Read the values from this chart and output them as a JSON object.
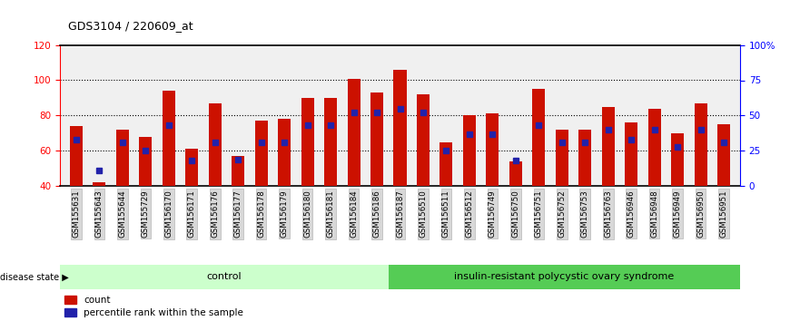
{
  "title": "GDS3104 / 220609_at",
  "samples": [
    "GSM155631",
    "GSM155643",
    "GSM155644",
    "GSM155729",
    "GSM156170",
    "GSM156171",
    "GSM156176",
    "GSM156177",
    "GSM156178",
    "GSM156179",
    "GSM156180",
    "GSM156181",
    "GSM156184",
    "GSM156186",
    "GSM156187",
    "GSM156510",
    "GSM156511",
    "GSM156512",
    "GSM156749",
    "GSM156750",
    "GSM156751",
    "GSM156752",
    "GSM156753",
    "GSM156763",
    "GSM156946",
    "GSM156948",
    "GSM156949",
    "GSM156950",
    "GSM156951"
  ],
  "red_values": [
    74,
    42,
    72,
    68,
    94,
    61,
    87,
    57,
    77,
    78,
    90,
    90,
    101,
    93,
    106,
    92,
    65,
    80,
    81,
    54,
    95,
    72,
    72,
    85,
    76,
    84,
    70,
    87,
    75
  ],
  "blue_values_pct": [
    33,
    11,
    31,
    25,
    43,
    18,
    31,
    19,
    31,
    31,
    43,
    43,
    52,
    52,
    55,
    52,
    25,
    37,
    37,
    18,
    43,
    31,
    31,
    40,
    33,
    40,
    28,
    40,
    31
  ],
  "group_boundary": 14,
  "group1_label": "control",
  "group2_label": "insulin-resistant polycystic ovary syndrome",
  "disease_state_label": "disease state",
  "legend_red": "count",
  "legend_blue": "percentile rank within the sample",
  "ylim_left": [
    40,
    120
  ],
  "ylim_right": [
    0,
    100
  ],
  "yticks_left": [
    40,
    60,
    80,
    100,
    120
  ],
  "yticks_right": [
    0,
    25,
    50,
    75,
    100
  ],
  "ytick_labels_right": [
    "0",
    "25",
    "50",
    "75",
    "100%"
  ],
  "grid_values": [
    60,
    80,
    100
  ],
  "bar_color": "#CC1100",
  "blue_color": "#2222AA",
  "group1_bg": "#CCFFCC",
  "group2_bg": "#55CC55",
  "axis_bg": "#F0F0F0",
  "fig_bg": "#FFFFFF"
}
